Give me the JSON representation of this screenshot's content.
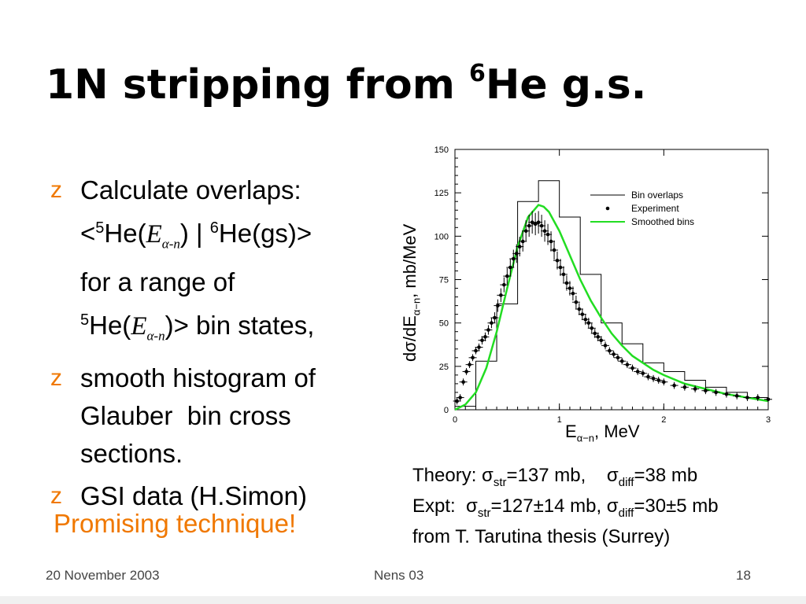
{
  "slide": {
    "title_main": "1N stripping from ",
    "title_sup": "6",
    "title_tail": "He g.s.",
    "bullet_mark": "z",
    "bullet1": {
      "line1": "Calculate overlaps:",
      "line2_a": "<",
      "line2_sup1": "5",
      "line2_b": "He(",
      "line2_E": "E",
      "line2_sub": "α-n",
      "line2_c": ") | ",
      "line2_sup2": "6",
      "line2_d": "He(gs)>",
      "line3": "for a range of",
      "line4_sup": "5",
      "line4_a": "He(",
      "line4_E": "E",
      "line4_sub": "α-n",
      "line4_b": ")> bin states,"
    },
    "bullet2": {
      "line1": "smooth histogram of",
      "line2": "Glauber  bin cross",
      "line3": "sections."
    },
    "bullet3": {
      "line1": "GSI data (H.Simon)"
    },
    "promise": "Promising technique!",
    "caption": {
      "l1_a": "Theory: σ",
      "l1_sub1": "str",
      "l1_b": "=137 mb,    σ",
      "l1_sub2": "diff",
      "l1_c": "=38 mb",
      "l2_a": "Expt:  σ",
      "l2_sub1": "str",
      "l2_b": "=127±14 mb, σ",
      "l2_sub2": "diff",
      "l2_c": "=30±5 mb",
      "l3": "from T. Tarutina thesis (Surrey)"
    },
    "footer": {
      "date": "20 November 2003",
      "conference": "Nens 03",
      "page": "18"
    },
    "colors": {
      "accent": "#f07800",
      "smooth": "#22dd22"
    }
  },
  "chart_data": {
    "type": "line",
    "xlabel_main": "E",
    "xlabel_sub": "α−n",
    "xlabel_tail": ", MeV",
    "ylabel_main": "dσ/dE",
    "ylabel_sub": "α−n",
    "ylabel_tail": ", mb/MeV",
    "xlim": [
      0,
      3
    ],
    "ylim": [
      0,
      150
    ],
    "x_ticks": [
      0,
      1,
      2,
      3
    ],
    "y_ticks": [
      0,
      25,
      50,
      75,
      100,
      125,
      150
    ],
    "legend_position": "top-right",
    "legend": [
      "Bin overlaps",
      "Experiment",
      "Smoothed bins"
    ],
    "histogram": {
      "name": "Bin overlaps",
      "edges": [
        0,
        0.2,
        0.4,
        0.6,
        0.8,
        1.0,
        1.2,
        1.4,
        1.6,
        1.8,
        2.0,
        2.2,
        2.4,
        2.6,
        2.8,
        3.0
      ],
      "values": [
        2,
        28,
        61,
        120,
        132,
        111,
        78,
        50,
        38,
        27,
        22,
        17,
        13,
        10,
        7
      ]
    },
    "experiment": {
      "name": "Experiment",
      "x": [
        0.02,
        0.05,
        0.08,
        0.11,
        0.14,
        0.17,
        0.2,
        0.23,
        0.26,
        0.29,
        0.32,
        0.35,
        0.38,
        0.41,
        0.44,
        0.47,
        0.5,
        0.53,
        0.56,
        0.59,
        0.62,
        0.65,
        0.68,
        0.71,
        0.74,
        0.77,
        0.8,
        0.83,
        0.86,
        0.89,
        0.92,
        0.95,
        0.98,
        1.01,
        1.04,
        1.07,
        1.1,
        1.13,
        1.16,
        1.19,
        1.22,
        1.25,
        1.28,
        1.31,
        1.34,
        1.37,
        1.4,
        1.44,
        1.48,
        1.52,
        1.56,
        1.6,
        1.65,
        1.7,
        1.75,
        1.8,
        1.85,
        1.9,
        1.95,
        2.0,
        2.1,
        2.2,
        2.3,
        2.4,
        2.5,
        2.6,
        2.7,
        2.8,
        2.9,
        3.0
      ],
      "y": [
        5,
        7,
        16,
        22,
        26,
        30,
        34,
        36,
        40,
        42,
        46,
        50,
        53,
        60,
        66,
        72,
        77,
        82,
        87,
        90,
        94,
        97,
        103,
        106,
        108,
        107,
        108,
        106,
        103,
        101,
        97,
        92,
        86,
        82,
        78,
        73,
        70,
        67,
        62,
        58,
        55,
        52,
        50,
        47,
        44,
        42,
        40,
        37,
        34,
        32,
        30,
        28,
        26,
        24,
        22,
        21,
        19,
        18,
        17,
        16,
        14,
        13,
        12,
        11,
        10,
        9,
        8,
        7,
        7,
        6
      ]
    },
    "smoothed": {
      "name": "Smoothed bins",
      "x": [
        0,
        0.1,
        0.2,
        0.3,
        0.4,
        0.5,
        0.6,
        0.7,
        0.8,
        0.85,
        0.9,
        1.0,
        1.1,
        1.2,
        1.3,
        1.4,
        1.5,
        1.6,
        1.7,
        1.8,
        1.9,
        2.0,
        2.2,
        2.4,
        2.6,
        2.8,
        3.0
      ],
      "y": [
        0,
        3,
        10,
        24,
        45,
        70,
        94,
        111,
        118,
        117,
        114,
        103,
        89,
        75,
        63,
        53,
        44,
        37,
        31,
        27,
        23,
        20,
        15,
        12,
        9,
        7,
        5
      ]
    }
  }
}
